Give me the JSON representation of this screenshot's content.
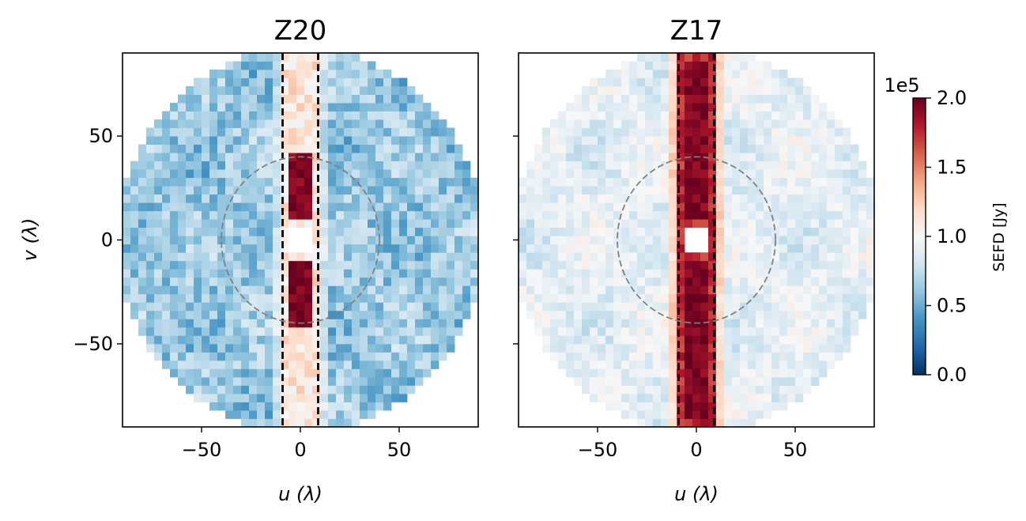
{
  "chart_data": [
    {
      "type": "heatmap",
      "title": "Z20",
      "xlabel": "u (λ)",
      "ylabel": "v (λ)",
      "xlim": [
        -90,
        90
      ],
      "ylim": [
        -90,
        90
      ],
      "xticks": [
        -50,
        0,
        50
      ],
      "yticks": [
        50,
        0,
        -50
      ],
      "xtick_labels": [
        "−50",
        "0",
        "50"
      ],
      "ytick_labels": [
        "50",
        "0",
        "−50"
      ],
      "grid": false,
      "data_radius": 90,
      "cell_size": 4,
      "center_gap_radius": 8,
      "vertical_lines_u": [
        -9,
        9
      ],
      "circle_radius": 40,
      "field": {
        "base": 0.63,
        "center_strip": 1.12,
        "hot_band_v_min": 8,
        "hot_band_v_max": 42,
        "hot_band_value": 1.95,
        "noise": 0.18
      }
    },
    {
      "type": "heatmap",
      "title": "Z17",
      "xlabel": "u (λ)",
      "ylabel": "",
      "xlim": [
        -90,
        90
      ],
      "ylim": [
        -90,
        90
      ],
      "xticks": [
        -50,
        0,
        50
      ],
      "yticks": [
        50,
        0,
        -50
      ],
      "xtick_labels": [
        "−50",
        "0",
        "50"
      ],
      "ytick_labels": [],
      "grid": false,
      "data_radius": 90,
      "cell_size": 4,
      "center_gap_radius": 8,
      "vertical_lines_u": [
        -9,
        9
      ],
      "circle_radius": 40,
      "field": {
        "base": 0.9,
        "center_strip": 1.75,
        "hot_band_v_min": 8,
        "hot_band_v_max": 85,
        "hot_band_value": 1.95,
        "noise": 0.12
      }
    }
  ],
  "colorbar": {
    "label": "SEFD [Jy]",
    "exponent_label": "1e5",
    "min": 0.0,
    "max": 2.0,
    "ticks": [
      0.0,
      0.5,
      1.0,
      1.5,
      2.0
    ],
    "tick_labels": [
      "0.0",
      "0.5",
      "1.0",
      "1.5",
      "2.0"
    ],
    "colormap": "RdBu_r",
    "stops": [
      "#053061",
      "#2166ac",
      "#4393c3",
      "#92c5de",
      "#d1e5f0",
      "#f7f7f7",
      "#fddbc7",
      "#f4a582",
      "#d6604d",
      "#b2182b",
      "#67001f"
    ]
  },
  "colors": {
    "dashed_lines": "#000000",
    "circle": "#808080"
  }
}
